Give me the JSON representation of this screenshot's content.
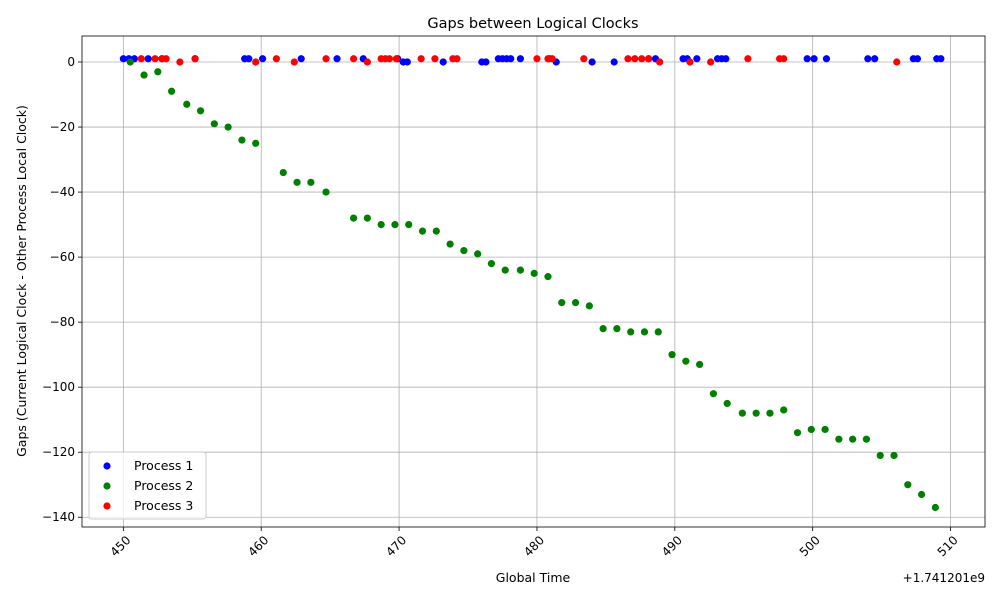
{
  "chart_data": {
    "type": "scatter",
    "title": "Gaps between Logical Clocks",
    "xlabel": "Global Time",
    "ylabel": "Gaps (Current Logical Clock - Other Process Local Clock)",
    "x_offset_label": "+1.741201e9",
    "xlim": [
      447,
      512.5
    ],
    "ylim": [
      -143,
      8
    ],
    "xticks": [
      450,
      460,
      470,
      480,
      490,
      500,
      510
    ],
    "yticks": [
      0,
      -20,
      -40,
      -60,
      -80,
      -100,
      -120,
      -140
    ],
    "grid": true,
    "legend_position": "lower-left",
    "series": [
      {
        "name": "Process 1",
        "color": "#0000ff",
        "points": [
          [
            450.0,
            1
          ],
          [
            450.4,
            1
          ],
          [
            450.8,
            1
          ],
          [
            451.8,
            1
          ],
          [
            452.8,
            1
          ],
          [
            455.2,
            1
          ],
          [
            458.8,
            1
          ],
          [
            459.1,
            1
          ],
          [
            460.1,
            1
          ],
          [
            462.9,
            1
          ],
          [
            465.5,
            1
          ],
          [
            467.4,
            1
          ],
          [
            469.9,
            1
          ],
          [
            470.3,
            0
          ],
          [
            470.6,
            0
          ],
          [
            473.2,
            0
          ],
          [
            476.0,
            0
          ],
          [
            476.3,
            0
          ],
          [
            477.2,
            1
          ],
          [
            477.5,
            1
          ],
          [
            477.8,
            1
          ],
          [
            478.1,
            1
          ],
          [
            478.8,
            1
          ],
          [
            480.9,
            1
          ],
          [
            481.4,
            0
          ],
          [
            484.0,
            0
          ],
          [
            485.6,
            0
          ],
          [
            488.1,
            1
          ],
          [
            488.6,
            1
          ],
          [
            490.6,
            1
          ],
          [
            490.9,
            1
          ],
          [
            491.6,
            1
          ],
          [
            493.1,
            1
          ],
          [
            493.4,
            1
          ],
          [
            493.7,
            1
          ],
          [
            499.6,
            1
          ],
          [
            500.1,
            1
          ],
          [
            501.0,
            1
          ],
          [
            504.0,
            1
          ],
          [
            504.5,
            1
          ],
          [
            507.3,
            1
          ],
          [
            507.6,
            1
          ],
          [
            509.0,
            1
          ],
          [
            509.3,
            1
          ]
        ]
      },
      {
        "name": "Process 2",
        "color": "#008000",
        "points": [
          [
            450.5,
            0
          ],
          [
            451.5,
            -4
          ],
          [
            452.5,
            -3
          ],
          [
            453.5,
            -9
          ],
          [
            454.6,
            -13
          ],
          [
            455.6,
            -15
          ],
          [
            456.6,
            -19
          ],
          [
            457.6,
            -20
          ],
          [
            458.6,
            -24
          ],
          [
            459.6,
            -25
          ],
          [
            461.6,
            -34
          ],
          [
            462.6,
            -37
          ],
          [
            463.6,
            -37
          ],
          [
            464.7,
            -40
          ],
          [
            466.7,
            -48
          ],
          [
            467.7,
            -48
          ],
          [
            468.7,
            -50
          ],
          [
            469.7,
            -50
          ],
          [
            470.7,
            -50
          ],
          [
            471.7,
            -52
          ],
          [
            472.7,
            -52
          ],
          [
            473.7,
            -56
          ],
          [
            474.7,
            -58
          ],
          [
            475.7,
            -59
          ],
          [
            476.7,
            -62
          ],
          [
            477.7,
            -64
          ],
          [
            478.8,
            -64
          ],
          [
            479.8,
            -65
          ],
          [
            480.8,
            -66
          ],
          [
            481.8,
            -74
          ],
          [
            482.8,
            -74
          ],
          [
            483.8,
            -75
          ],
          [
            484.8,
            -82
          ],
          [
            485.8,
            -82
          ],
          [
            486.8,
            -83
          ],
          [
            487.8,
            -83
          ],
          [
            488.8,
            -83
          ],
          [
            489.8,
            -90
          ],
          [
            490.8,
            -92
          ],
          [
            491.8,
            -93
          ],
          [
            492.8,
            -102
          ],
          [
            493.8,
            -105
          ],
          [
            494.9,
            -108
          ],
          [
            495.9,
            -108
          ],
          [
            496.9,
            -108
          ],
          [
            497.9,
            -107
          ],
          [
            498.9,
            -114
          ],
          [
            499.9,
            -113
          ],
          [
            500.9,
            -113
          ],
          [
            501.9,
            -116
          ],
          [
            502.9,
            -116
          ],
          [
            503.9,
            -116
          ],
          [
            504.9,
            -121
          ],
          [
            505.9,
            -121
          ],
          [
            506.9,
            -130
          ],
          [
            507.9,
            -133
          ],
          [
            508.9,
            -137
          ]
        ]
      },
      {
        "name": "Process 3",
        "color": "#ff0000",
        "points": [
          [
            451.3,
            1
          ],
          [
            452.3,
            1
          ],
          [
            452.8,
            1
          ],
          [
            453.1,
            1
          ],
          [
            454.1,
            0
          ],
          [
            455.2,
            1
          ],
          [
            459.6,
            0
          ],
          [
            461.1,
            1
          ],
          [
            462.4,
            0
          ],
          [
            464.7,
            1
          ],
          [
            466.7,
            1
          ],
          [
            467.7,
            0
          ],
          [
            468.7,
            1
          ],
          [
            469.0,
            1
          ],
          [
            469.3,
            1
          ],
          [
            469.8,
            1
          ],
          [
            471.6,
            1
          ],
          [
            472.6,
            1
          ],
          [
            473.9,
            1
          ],
          [
            474.2,
            1
          ],
          [
            480.0,
            1
          ],
          [
            480.8,
            1
          ],
          [
            481.1,
            1
          ],
          [
            483.4,
            1
          ],
          [
            486.6,
            1
          ],
          [
            487.1,
            1
          ],
          [
            487.6,
            1
          ],
          [
            488.1,
            1
          ],
          [
            488.9,
            0
          ],
          [
            491.1,
            0
          ],
          [
            492.6,
            0
          ],
          [
            495.3,
            1
          ],
          [
            497.6,
            1
          ],
          [
            497.9,
            1
          ],
          [
            506.1,
            0
          ]
        ]
      }
    ]
  }
}
